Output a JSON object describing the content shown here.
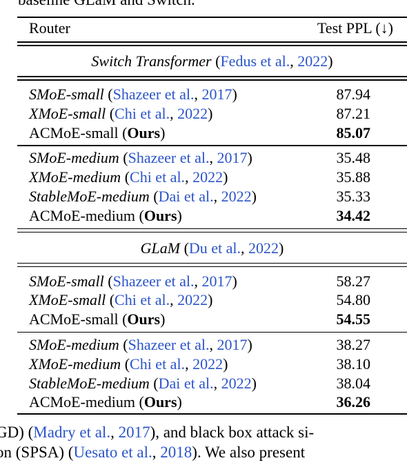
{
  "caption_fragment": "baseline GLaM and Switch.",
  "header": {
    "router": "Router",
    "metric": "Test PPL (↓)"
  },
  "sections": [
    {
      "model": "Switch Transformer",
      "cite": {
        "author": "Fedus et al.",
        "year": "2022"
      },
      "groups": [
        [
          {
            "name": "SMoE-small",
            "italic": true,
            "cite": {
              "author": "Shazeer et al.",
              "year": "2017"
            },
            "value": "87.94",
            "bold": false
          },
          {
            "name": "XMoE-small",
            "italic": true,
            "cite": {
              "author": "Chi et al.",
              "year": "2022"
            },
            "value": "87.21",
            "bold": false
          },
          {
            "name": "ACMoE-small",
            "italic": false,
            "ours": "Ours",
            "value": "85.07",
            "bold": true
          }
        ],
        [
          {
            "name": "SMoE-medium",
            "italic": true,
            "cite": {
              "author": "Shazeer et al.",
              "year": "2017"
            },
            "value": "35.48",
            "bold": false
          },
          {
            "name": "XMoE-medium",
            "italic": true,
            "cite": {
              "author": "Chi et al.",
              "year": "2022"
            },
            "value": "35.88",
            "bold": false
          },
          {
            "name": "StableMoE-medium",
            "italic": true,
            "cite": {
              "author": "Dai et al.",
              "year": "2022"
            },
            "value": "35.33",
            "bold": false
          },
          {
            "name": "ACMoE-medium",
            "italic": false,
            "ours": "Ours",
            "value": "34.42",
            "bold": true
          }
        ]
      ]
    },
    {
      "model": "GLaM",
      "cite": {
        "author": "Du et al.",
        "year": "2022"
      },
      "groups": [
        [
          {
            "name": "SMoE-small",
            "italic": true,
            "cite": {
              "author": "Shazeer et al.",
              "year": "2017"
            },
            "value": "58.27",
            "bold": false
          },
          {
            "name": "XMoE-small",
            "italic": true,
            "cite": {
              "author": "Chi et al.",
              "year": "2022"
            },
            "value": "54.80",
            "bold": false
          },
          {
            "name": "ACMoE-small",
            "italic": false,
            "ours": "Ours",
            "value": "54.55",
            "bold": true
          }
        ],
        [
          {
            "name": "SMoE-medium",
            "italic": true,
            "cite": {
              "author": "Shazeer et al.",
              "year": "2017"
            },
            "value": "38.27",
            "bold": false
          },
          {
            "name": "XMoE-medium",
            "italic": true,
            "cite": {
              "author": "Chi et al.",
              "year": "2022"
            },
            "value": "38.10",
            "bold": false
          },
          {
            "name": "StableMoE-medium",
            "italic": true,
            "cite": {
              "author": "Dai et al.",
              "year": "2022"
            },
            "value": "38.04",
            "bold": false
          },
          {
            "name": "ACMoE-medium",
            "italic": false,
            "ours": "Ours",
            "value": "36.26",
            "bold": true
          }
        ]
      ]
    }
  ],
  "body_lines": [
    {
      "prefix": "GD) (",
      "cite_author": "Madry et al.",
      "sep": ", ",
      "cite_year": "2017",
      "suffix": "), and black box attack si-"
    },
    {
      "prefix": "on (SPSA) (",
      "cite_author": "Uesato et al.",
      "sep": ", ",
      "cite_year": "2018",
      "suffix": "). We also present"
    }
  ]
}
